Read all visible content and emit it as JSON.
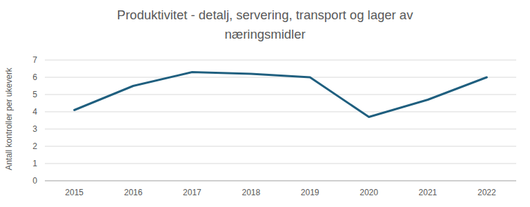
{
  "chart_data": {
    "type": "line",
    "title": "Produktivitet - detalj, servering, transport og lager av næringsmidler",
    "y_label": "Antall kontroller per ukeverk",
    "categories": [
      "2015",
      "2016",
      "2017",
      "2018",
      "2019",
      "2020",
      "2021",
      "2022"
    ],
    "values": [
      4.1,
      5.5,
      6.3,
      6.2,
      6.0,
      3.7,
      4.7,
      6.0
    ],
    "color": "#1f5f7f",
    "ylim": [
      0,
      7
    ],
    "yticks": [
      0,
      1,
      2,
      3,
      4,
      5,
      6,
      7
    ],
    "grid": true
  }
}
